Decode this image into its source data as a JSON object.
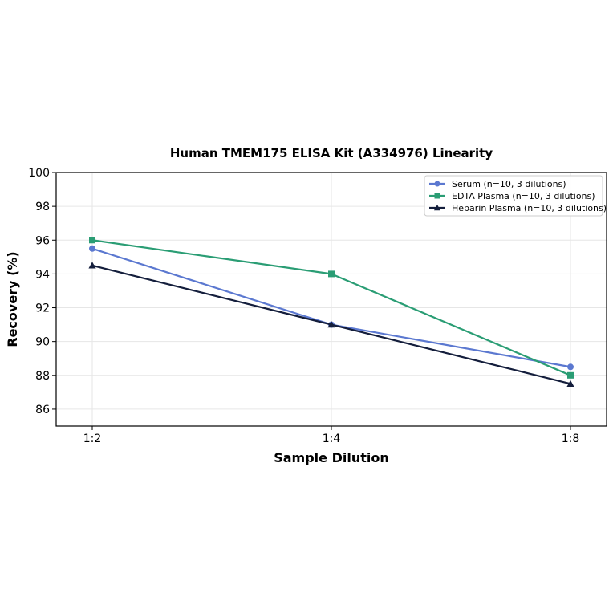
{
  "chart_data": {
    "type": "line",
    "title": "Human TMEM175 ELISA Kit (A334976) Linearity",
    "xlabel": "Sample Dilution",
    "ylabel": "Recovery (%)",
    "categories": [
      "1:2",
      "1:4",
      "1:8"
    ],
    "ylim": [
      85,
      100
    ],
    "yticks": [
      86,
      88,
      90,
      92,
      94,
      96,
      98,
      100
    ],
    "grid": true,
    "legend_position": "top-right",
    "series": [
      {
        "name": "Serum (n=10, 3 dilutions)",
        "values": [
          95.5,
          91.0,
          88.5
        ],
        "color": "#5b78d0",
        "marker": "circle"
      },
      {
        "name": "EDTA Plasma (n=10, 3 dilutions)",
        "values": [
          96.0,
          94.0,
          88.0
        ],
        "color": "#2a9d74",
        "marker": "square"
      },
      {
        "name": "Heparin Plasma (n=10, 3 dilutions)",
        "values": [
          94.5,
          91.0,
          87.5
        ],
        "color": "#141e3c",
        "marker": "triangle"
      }
    ]
  }
}
